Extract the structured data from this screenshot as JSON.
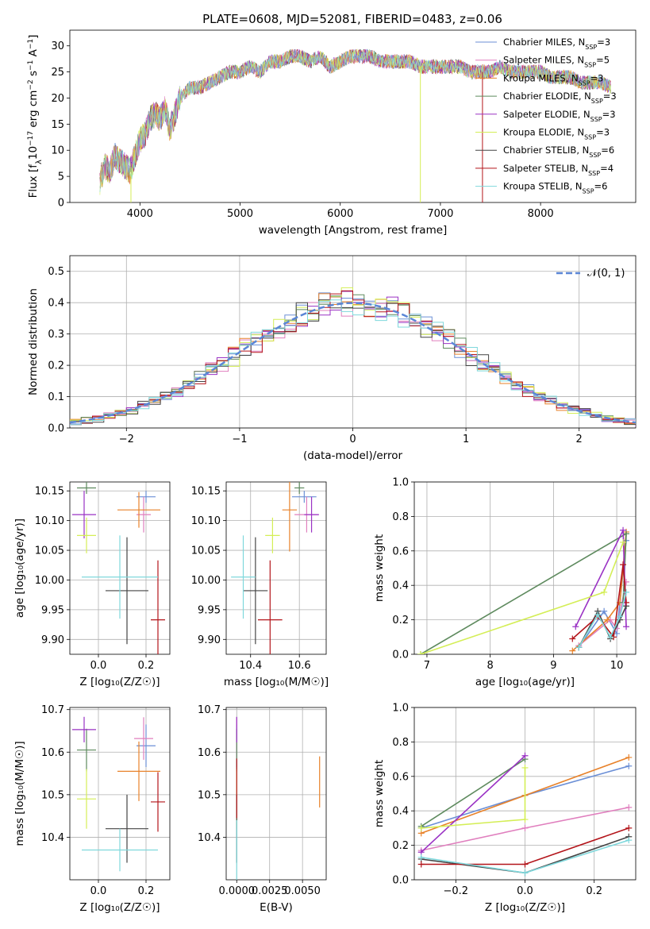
{
  "figure_title": "PLATE=0608, MJD=52081, FIBERID=0483, z=0.06",
  "series": [
    {
      "name": "Chabrier MILES",
      "nssp": "3",
      "color": "#6b8fd6"
    },
    {
      "name": "Salpeter MILES",
      "nssp": "5",
      "color": "#e07fbe"
    },
    {
      "name": "Kroupa MILES",
      "nssp": "3",
      "color": "#e8822a"
    },
    {
      "name": "Chabrier ELODIE",
      "nssp": "3",
      "color": "#5e8a5e"
    },
    {
      "name": "Salpeter ELODIE",
      "nssp": "3",
      "color": "#9a32c4"
    },
    {
      "name": "Kroupa ELODIE",
      "nssp": "3",
      "color": "#d4ee56"
    },
    {
      "name": "Chabrier STELIB",
      "nssp": "6",
      "color": "#444444"
    },
    {
      "name": "Salpeter STELIB",
      "nssp": "4",
      "color": "#b3141a"
    },
    {
      "name": "Kroupa STELIB",
      "nssp": "6",
      "color": "#7fd8dc"
    }
  ],
  "chart_data": [
    {
      "id": "spectrum",
      "type": "line",
      "xlabel": "wavelength [Angstrom, rest frame]",
      "ylabel_html": "Flux [f<tspan baseline-shift='sub' font-size='10'>λ</tspan>10<tspan baseline-shift='super' font-size='9'>−17</tspan> erg cm<tspan baseline-shift='super' font-size='9'>−2</tspan> s<tspan baseline-shift='super' font-size='9'>−1</tspan> A<tspan baseline-shift='super' font-size='9'>−1</tspan>]",
      "xlim": [
        3300,
        8950
      ],
      "ylim": [
        0,
        33
      ],
      "xticks": [
        4000,
        5000,
        6000,
        7000,
        8000
      ],
      "yticks": [
        0,
        5,
        10,
        15,
        20,
        25,
        30
      ],
      "grid": false,
      "legend": "top-right",
      "x": [
        3600,
        3650,
        3700,
        3750,
        3800,
        3850,
        3900,
        3950,
        4000,
        4050,
        4100,
        4150,
        4200,
        4250,
        4300,
        4350,
        4400,
        4500,
        4600,
        4700,
        4800,
        4900,
        5000,
        5100,
        5200,
        5300,
        5400,
        5500,
        5600,
        5700,
        5800,
        5900,
        6000,
        6100,
        6200,
        6300,
        6400,
        6500,
        6600,
        6700,
        6800,
        6900,
        7000,
        7100,
        7200,
        7300,
        7400,
        7500,
        7600,
        7700,
        7800,
        7900,
        8000,
        8100,
        8200,
        8300,
        8400,
        8500,
        8600,
        8700
      ],
      "y": [
        4,
        7,
        6,
        9,
        8,
        7,
        6,
        9,
        12,
        13,
        16,
        17,
        16,
        18,
        14,
        17,
        20,
        22,
        22,
        23,
        24,
        25,
        25,
        26,
        25,
        27,
        27,
        28,
        28,
        27,
        28,
        26,
        27,
        28,
        28,
        28,
        27,
        27,
        27,
        27,
        26,
        26,
        26,
        26,
        26,
        25,
        25,
        25,
        26,
        25,
        25,
        25,
        25,
        24,
        24,
        24,
        23,
        23,
        23,
        22
      ],
      "spikes": [
        {
          "x": 3910,
          "y_min": 0
        },
        {
          "x": 6800,
          "y_min": 0
        },
        {
          "x": 7420,
          "y_min": 0
        }
      ]
    },
    {
      "id": "residual_hist",
      "type": "step",
      "xlabel": "(data-model)/error",
      "ylabel": "Normed distribution",
      "xlim": [
        -2.5,
        2.5
      ],
      "ylim": [
        0,
        0.55
      ],
      "xticks": [
        -2,
        -1,
        0,
        1,
        2
      ],
      "yticks": [
        0.0,
        0.1,
        0.2,
        0.3,
        0.4,
        0.5
      ],
      "xtick_labels": [
        "−2",
        "−1",
        "0",
        "1",
        "2"
      ],
      "ytick_labels": [
        "0.0",
        "0.1",
        "0.2",
        "0.3",
        "0.4",
        "0.5"
      ],
      "grid": true,
      "legend": "top-right",
      "reference_label": "𝒩(0, 1)",
      "reference_color": "#5b86d6",
      "bin_width": 0.1
    },
    {
      "id": "age_vs_Z",
      "type": "errorbar",
      "xlabel": "Z [log₁₀(Z/Z☉)]",
      "ylabel": "age  [log₁₀(age/yr)]",
      "xlim": [
        -0.12,
        0.3
      ],
      "ylim": [
        9.875,
        10.165
      ],
      "xticks": [
        0.0,
        0.2
      ],
      "yticks": [
        9.9,
        9.95,
        10.0,
        10.05,
        10.1,
        10.15
      ],
      "xtick_labels": [
        "0.0",
        "0.2"
      ],
      "ytick_labels": [
        "9.90",
        "9.95",
        "10.00",
        "10.05",
        "10.10",
        "10.15"
      ],
      "grid": true,
      "points": [
        {
          "x": 0.2,
          "y": 10.14,
          "xerr": 0.04,
          "yerr": 0.01
        },
        {
          "x": 0.19,
          "y": 10.11,
          "xerr": 0.03,
          "yerr": 0.03
        },
        {
          "x": 0.17,
          "y": 10.118,
          "xerr": 0.09,
          "yerr": 0.03
        },
        {
          "x": -0.05,
          "y": 10.155,
          "xerr": 0.04,
          "yerr": 0.01
        },
        {
          "x": -0.06,
          "y": 10.11,
          "xerr": 0.05,
          "yerr": 0.04
        },
        {
          "x": -0.05,
          "y": 10.075,
          "xerr": 0.04,
          "yerr": 0.03
        },
        {
          "x": 0.12,
          "y": 9.982,
          "xerr": 0.09,
          "yerr": 0.09
        },
        {
          "x": 0.25,
          "y": 9.933,
          "xerr": 0.03,
          "yerr": 0.1
        },
        {
          "x": 0.09,
          "y": 10.005,
          "xerr": 0.16,
          "yerr": 0.07
        }
      ]
    },
    {
      "id": "age_vs_mass",
      "type": "errorbar",
      "xlabel": "mass [log₁₀(M/M☉)]",
      "ylabel": "",
      "xlim": [
        10.3,
        10.71
      ],
      "ylim": [
        9.875,
        10.165
      ],
      "xticks": [
        10.4,
        10.6
      ],
      "yticks": [
        9.9,
        9.95,
        10.0,
        10.05,
        10.1,
        10.15
      ],
      "xtick_labels": [
        "10.4",
        "10.6"
      ],
      "ytick_labels": [
        "9.90",
        "9.95",
        "10.00",
        "10.05",
        "10.10",
        "10.15"
      ],
      "grid": true,
      "points": [
        {
          "x": 10.62,
          "y": 10.14,
          "xerr": 0.05,
          "yerr": 0.01
        },
        {
          "x": 10.63,
          "y": 10.11,
          "xerr": 0.05,
          "yerr": 0.03
        },
        {
          "x": 10.56,
          "y": 10.118,
          "xerr": 0.03,
          "yerr": 0.07
        },
        {
          "x": 10.6,
          "y": 10.155,
          "xerr": 0.02,
          "yerr": 0.01
        },
        {
          "x": 10.65,
          "y": 10.11,
          "xerr": 0.03,
          "yerr": 0.03
        },
        {
          "x": 10.49,
          "y": 10.075,
          "xerr": 0.03,
          "yerr": 0.03
        },
        {
          "x": 10.42,
          "y": 9.982,
          "xerr": 0.05,
          "yerr": 0.09
        },
        {
          "x": 10.48,
          "y": 9.933,
          "xerr": 0.05,
          "yerr": 0.1
        },
        {
          "x": 10.37,
          "y": 10.005,
          "xerr": 0.05,
          "yerr": 0.07
        }
      ]
    },
    {
      "id": "weight_vs_age",
      "type": "line",
      "xlabel": "age  [log₁₀(age/yr)]",
      "ylabel": "mass weight",
      "xlim": [
        6.8,
        10.3
      ],
      "ylim": [
        0,
        1.0
      ],
      "xticks": [
        7,
        8,
        9,
        10
      ],
      "yticks": [
        0.0,
        0.2,
        0.4,
        0.6,
        0.8,
        1.0
      ],
      "xtick_labels": [
        "7",
        "8",
        "9",
        "10"
      ],
      "ytick_labels": [
        "0.0",
        "0.2",
        "0.4",
        "0.6",
        "0.8",
        "1.0"
      ],
      "grid": true,
      "lines": [
        {
          "x": [
            9.4,
            9.8,
            10.0,
            10.15
          ],
          "y": [
            0.04,
            0.25,
            0.12,
            0.66
          ]
        },
        {
          "x": [
            9.4,
            9.9,
            10.0,
            10.15
          ],
          "y": [
            0.05,
            0.2,
            0.15,
            0.42
          ]
        },
        {
          "x": [
            9.3,
            9.85,
            10.05,
            10.15
          ],
          "y": [
            0.02,
            0.2,
            0.3,
            0.71
          ]
        },
        {
          "x": [
            6.9,
            10.15,
            10.1
          ],
          "y": [
            0.0,
            0.7,
            0.3
          ]
        },
        {
          "x": [
            9.35,
            10.1,
            10.15
          ],
          "y": [
            0.16,
            0.72,
            0.16
          ]
        },
        {
          "x": [
            6.9,
            9.8,
            10.1
          ],
          "y": [
            0.0,
            0.36,
            0.65
          ]
        },
        {
          "x": [
            9.4,
            9.7,
            9.9,
            10.05,
            10.15
          ],
          "y": [
            0.04,
            0.25,
            0.09,
            0.2,
            0.28
          ]
        },
        {
          "x": [
            9.3,
            9.7,
            9.95,
            10.1,
            10.15
          ],
          "y": [
            0.09,
            0.22,
            0.1,
            0.52,
            0.3
          ]
        },
        {
          "x": [
            9.4,
            9.7,
            9.9,
            10.05,
            10.15
          ],
          "y": [
            0.04,
            0.23,
            0.1,
            0.22,
            0.36
          ]
        }
      ]
    },
    {
      "id": "mass_vs_Z",
      "type": "errorbar",
      "xlabel": "Z [log₁₀(Z/Z☉)]",
      "ylabel": "mass [log₁₀(M/M☉)]",
      "xlim": [
        -0.12,
        0.3
      ],
      "ylim": [
        10.3,
        10.705
      ],
      "xticks": [
        0.0,
        0.2
      ],
      "yticks": [
        10.4,
        10.5,
        10.6,
        10.7
      ],
      "xtick_labels": [
        "0.0",
        "0.2"
      ],
      "ytick_labels": [
        "10.4",
        "10.5",
        "10.6",
        "10.7"
      ],
      "grid": true,
      "points": [
        {
          "x": 0.2,
          "y": 10.615,
          "xerr": 0.04,
          "yerr": 0.05
        },
        {
          "x": 0.19,
          "y": 10.632,
          "xerr": 0.04,
          "yerr": 0.05
        },
        {
          "x": 0.17,
          "y": 10.555,
          "xerr": 0.09,
          "yerr": 0.07
        },
        {
          "x": -0.05,
          "y": 10.605,
          "xerr": 0.04,
          "yerr": 0.05
        },
        {
          "x": -0.06,
          "y": 10.653,
          "xerr": 0.05,
          "yerr": 0.03
        },
        {
          "x": -0.05,
          "y": 10.49,
          "xerr": 0.04,
          "yerr": 0.07
        },
        {
          "x": 0.12,
          "y": 10.42,
          "xerr": 0.09,
          "yerr": 0.08
        },
        {
          "x": 0.25,
          "y": 10.483,
          "xerr": 0.03,
          "yerr": 0.07
        },
        {
          "x": 0.09,
          "y": 10.37,
          "xerr": 0.16,
          "yerr": 0.05
        }
      ]
    },
    {
      "id": "mass_vs_ebv",
      "type": "errorbar",
      "xlabel": "E(B-V)",
      "ylabel": "",
      "xlim": [
        -0.0008,
        0.0068
      ],
      "ylim": [
        10.3,
        10.705
      ],
      "xticks": [
        0.0,
        0.0025,
        0.005
      ],
      "yticks": [
        10.4,
        10.5,
        10.6,
        10.7
      ],
      "xtick_labels": [
        "0.0000",
        "0.0025",
        "0.0050"
      ],
      "ytick_labels": [
        "10.4",
        "10.5",
        "10.6",
        "10.7"
      ],
      "grid": true,
      "points": [
        {
          "x": 0.0,
          "y": 10.615,
          "xerr": 0,
          "yerr": 0.05
        },
        {
          "x": 0.0,
          "y": 10.632,
          "xerr": 0,
          "yerr": 0.05
        },
        {
          "x": 0.0063,
          "y": 10.53,
          "xerr": 0,
          "yerr": 0.06
        },
        {
          "x": 0.0,
          "y": 10.605,
          "xerr": 0,
          "yerr": 0.05
        },
        {
          "x": 0.0,
          "y": 10.653,
          "xerr": 0,
          "yerr": 0.03
        },
        {
          "x": 0.0,
          "y": 10.49,
          "xerr": 0,
          "yerr": 0.07
        },
        {
          "x": 0.0,
          "y": 10.42,
          "xerr": 0,
          "yerr": 0.08
        },
        {
          "x": 0.0,
          "y": 10.515,
          "xerr": 0,
          "yerr": 0.07
        },
        {
          "x": 0.0,
          "y": 10.37,
          "xerr": 0,
          "yerr": 0.07
        }
      ]
    },
    {
      "id": "weight_vs_Z",
      "type": "line",
      "xlabel": "Z [log₁₀(Z/Z☉)]",
      "ylabel": "mass weight",
      "xlim": [
        -0.32,
        0.32
      ],
      "ylim": [
        0,
        1.0
      ],
      "xticks": [
        -0.2,
        0.0,
        0.2
      ],
      "yticks": [
        0.0,
        0.2,
        0.4,
        0.6,
        0.8,
        1.0
      ],
      "xtick_labels": [
        "−0.2",
        "0.0",
        "0.2"
      ],
      "ytick_labels": [
        "0.0",
        "0.2",
        "0.4",
        "0.6",
        "0.8",
        "1.0"
      ],
      "grid": true,
      "lines": [
        {
          "x": [
            -0.3,
            0.0,
            0.3
          ],
          "y": [
            0.3,
            0.49,
            0.66
          ]
        },
        {
          "x": [
            -0.3,
            0.0,
            0.3
          ],
          "y": [
            0.17,
            0.3,
            0.42
          ]
        },
        {
          "x": [
            -0.3,
            0.0,
            0.3
          ],
          "y": [
            0.27,
            0.49,
            0.71
          ]
        },
        {
          "x": [
            -0.3,
            0.0
          ],
          "y": [
            0.31,
            0.7
          ]
        },
        {
          "x": [
            -0.3,
            0.0
          ],
          "y": [
            0.16,
            0.72
          ]
        },
        {
          "x": [
            -0.3,
            0.0,
            0.0
          ],
          "y": [
            0.3,
            0.35,
            0.65
          ]
        },
        {
          "x": [
            -0.3,
            0.0,
            0.3
          ],
          "y": [
            0.12,
            0.04,
            0.25
          ]
        },
        {
          "x": [
            -0.3,
            0.0,
            0.3
          ],
          "y": [
            0.09,
            0.09,
            0.3
          ]
        },
        {
          "x": [
            -0.3,
            0.0,
            0.3
          ],
          "y": [
            0.13,
            0.04,
            0.23
          ]
        }
      ]
    }
  ]
}
